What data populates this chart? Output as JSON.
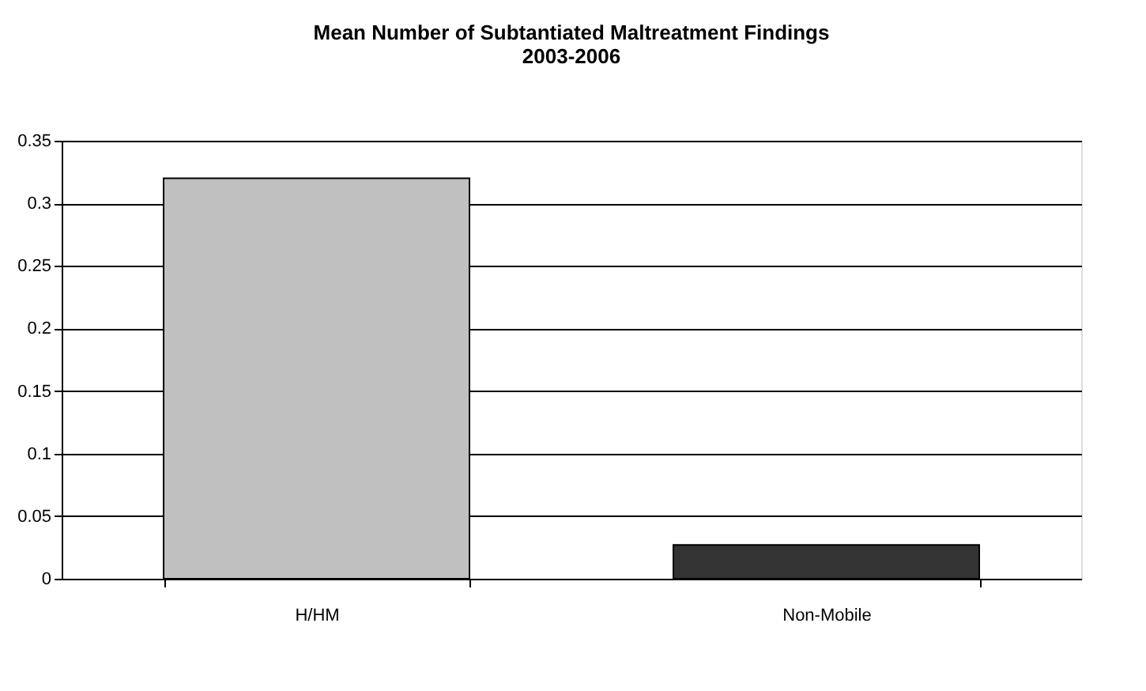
{
  "chart_data": {
    "type": "bar",
    "title": "Mean Number of Subtantiated Maltreatment Findings 2003-2006",
    "categories": [
      "H/HM",
      "Non-Mobile"
    ],
    "values": [
      0.32,
      0.027
    ],
    "colors": [
      "#c0c0c0",
      "#333333"
    ],
    "ylim": [
      0,
      0.35
    ],
    "yticks": [
      0,
      0.05,
      0.1,
      0.15,
      0.2,
      0.25,
      0.3,
      0.35
    ],
    "grid": "y"
  }
}
